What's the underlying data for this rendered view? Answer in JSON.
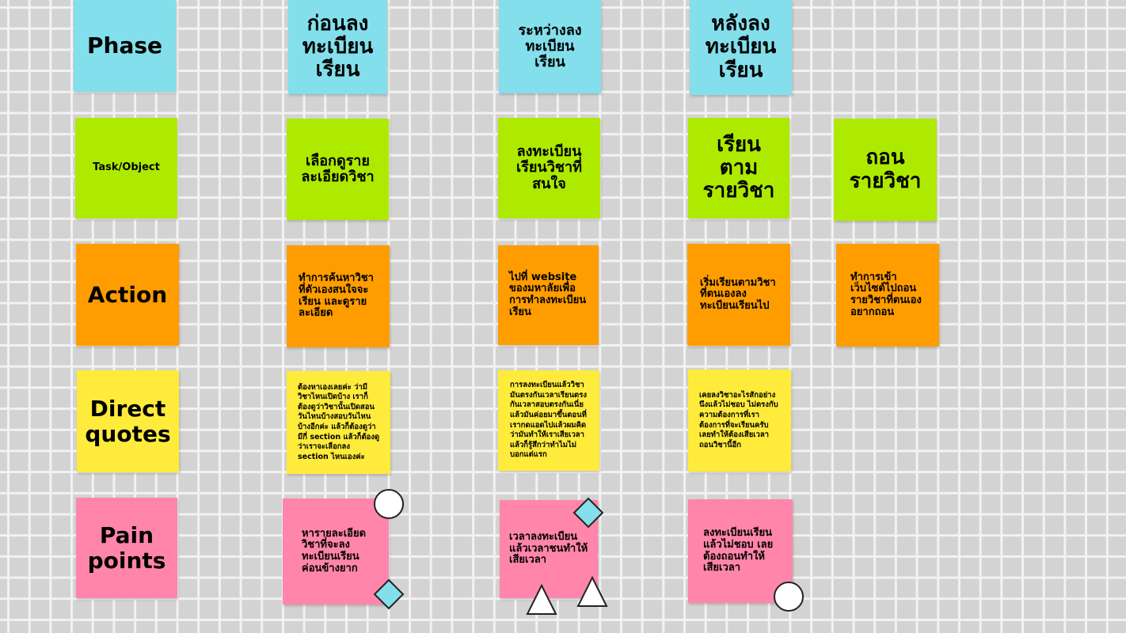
{
  "colors": {
    "phase": "#83dfeb",
    "task": "#aeea00",
    "action": "#ff9d00",
    "quotes": "#ffeb3b",
    "pain": "#ff85ab",
    "shape_diamond": "#83dfeb",
    "shape_outline": "#222222"
  },
  "row_labels": {
    "phase": "Phase",
    "task": "Task/Object",
    "action": "Action",
    "quotes": "Direct\nquotes",
    "pain": "Pain\npoints"
  },
  "phases": {
    "before": "ก่อนลง\nทะเบียน\nเรียน",
    "during": "ระหว่างลง\nทะเบียน\nเรียน",
    "after": "หลังลง\nทะเบียน\nเรียน"
  },
  "tasks": {
    "before": "เลือกดูราย\nละเอียดวิชา",
    "during": "ลงทะเบียน\nเรียนวิชาที่\nสนใจ",
    "after": "เรียน\nตาม\nรายวิชา",
    "withdraw": "ถอน\nรายวิชา"
  },
  "actions": {
    "before": "ทำการค้นหาวิชา\nที่ตัวเองสนใจจะ\nเรียน และดูราย\nละเอียด",
    "during": "ไปที่ website\nของมหาลัยเพื่อ\nการทำลงทะเบียน\nเรียน",
    "after": "เริ่มเรียนตามวิชา\nที่ตนเองลง\nทะเบียนเรียนไป",
    "withdraw": "ทำการเข้า\nเว็บไซต์ไปถอน\nรายวิชาที่ตนเอง\nอยากถอน"
  },
  "quotes": {
    "before": "ต้องหาเองเลยค่ะ ว่ามี\nวิชาไหนเปิดบ้าง เราก็\nต้องดูว่าวิชานั้นเปิดสอน\nวันไหนบ้างสอบวันไหน\nบ้างอีกค่ะ แล้วก็ต้องดูว่า\nมีกี่ section แล้วก็ต้องดู\nว่าเราจะเลือกลง\nsection ไหนเองค่ะ",
    "during": "การลงทะเบียนแล้ววิชา\nมันตรงกันเวลาเรียนตรง\nกันเวลาสอบตรงกันเนี่ย\nแล้วมันค่อยมาขึ้นตอนที่\nเรากดแอดไปแล้วผมคิด\nว่ามันทำให้เราเสียเวลา\nแล้วก็รู้สึกว่าทำไมไม่\nบอกแต่แรก",
    "after": "เคยลงวิชาอะไรสักอย่าง\nนึงแล้วไม่ชอบ ไม่ตรงกับ\nความต้องการที่เรา\nต้องการที่จะเรียนครับ\nเลยทำให้ต้องเสียเวลา\nถอนวิชานี้อีก"
  },
  "pains": {
    "before": "หารายละเอียด\nวิชาที่จะลง\nทะเบียนเรียน\nค่อนข้างยาก",
    "during": "เวลาลงทะเบียน\nแล้วเวลาชนทำให้\nเสียเวลา",
    "after": "ลงทะเบียนเรียน\nแล้วไม่ชอบ เลย\nต้องถอนทำให้\nเสียเวลา"
  }
}
